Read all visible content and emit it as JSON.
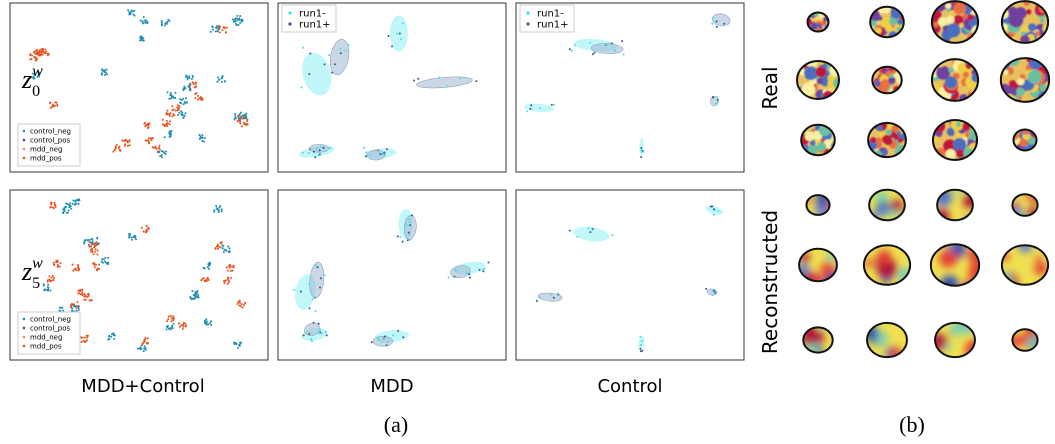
{
  "panel_a": {
    "row_labels": [
      {
        "base": "z",
        "sub": "0",
        "sup": "w"
      },
      {
        "base": "z",
        "sub": "5",
        "sup": "w"
      }
    ],
    "column_labels": [
      "MDD+Control",
      "MDD",
      "Control"
    ],
    "group_legend": [
      "control_neg",
      "control_pos",
      "mdd_neg",
      "mdd_pos"
    ],
    "run_legend": [
      "run1-",
      "run1+"
    ],
    "caption": "(a)"
  },
  "panel_b": {
    "row_labels": [
      "Real",
      "Reconstructed"
    ],
    "caption": "(b)"
  }
}
